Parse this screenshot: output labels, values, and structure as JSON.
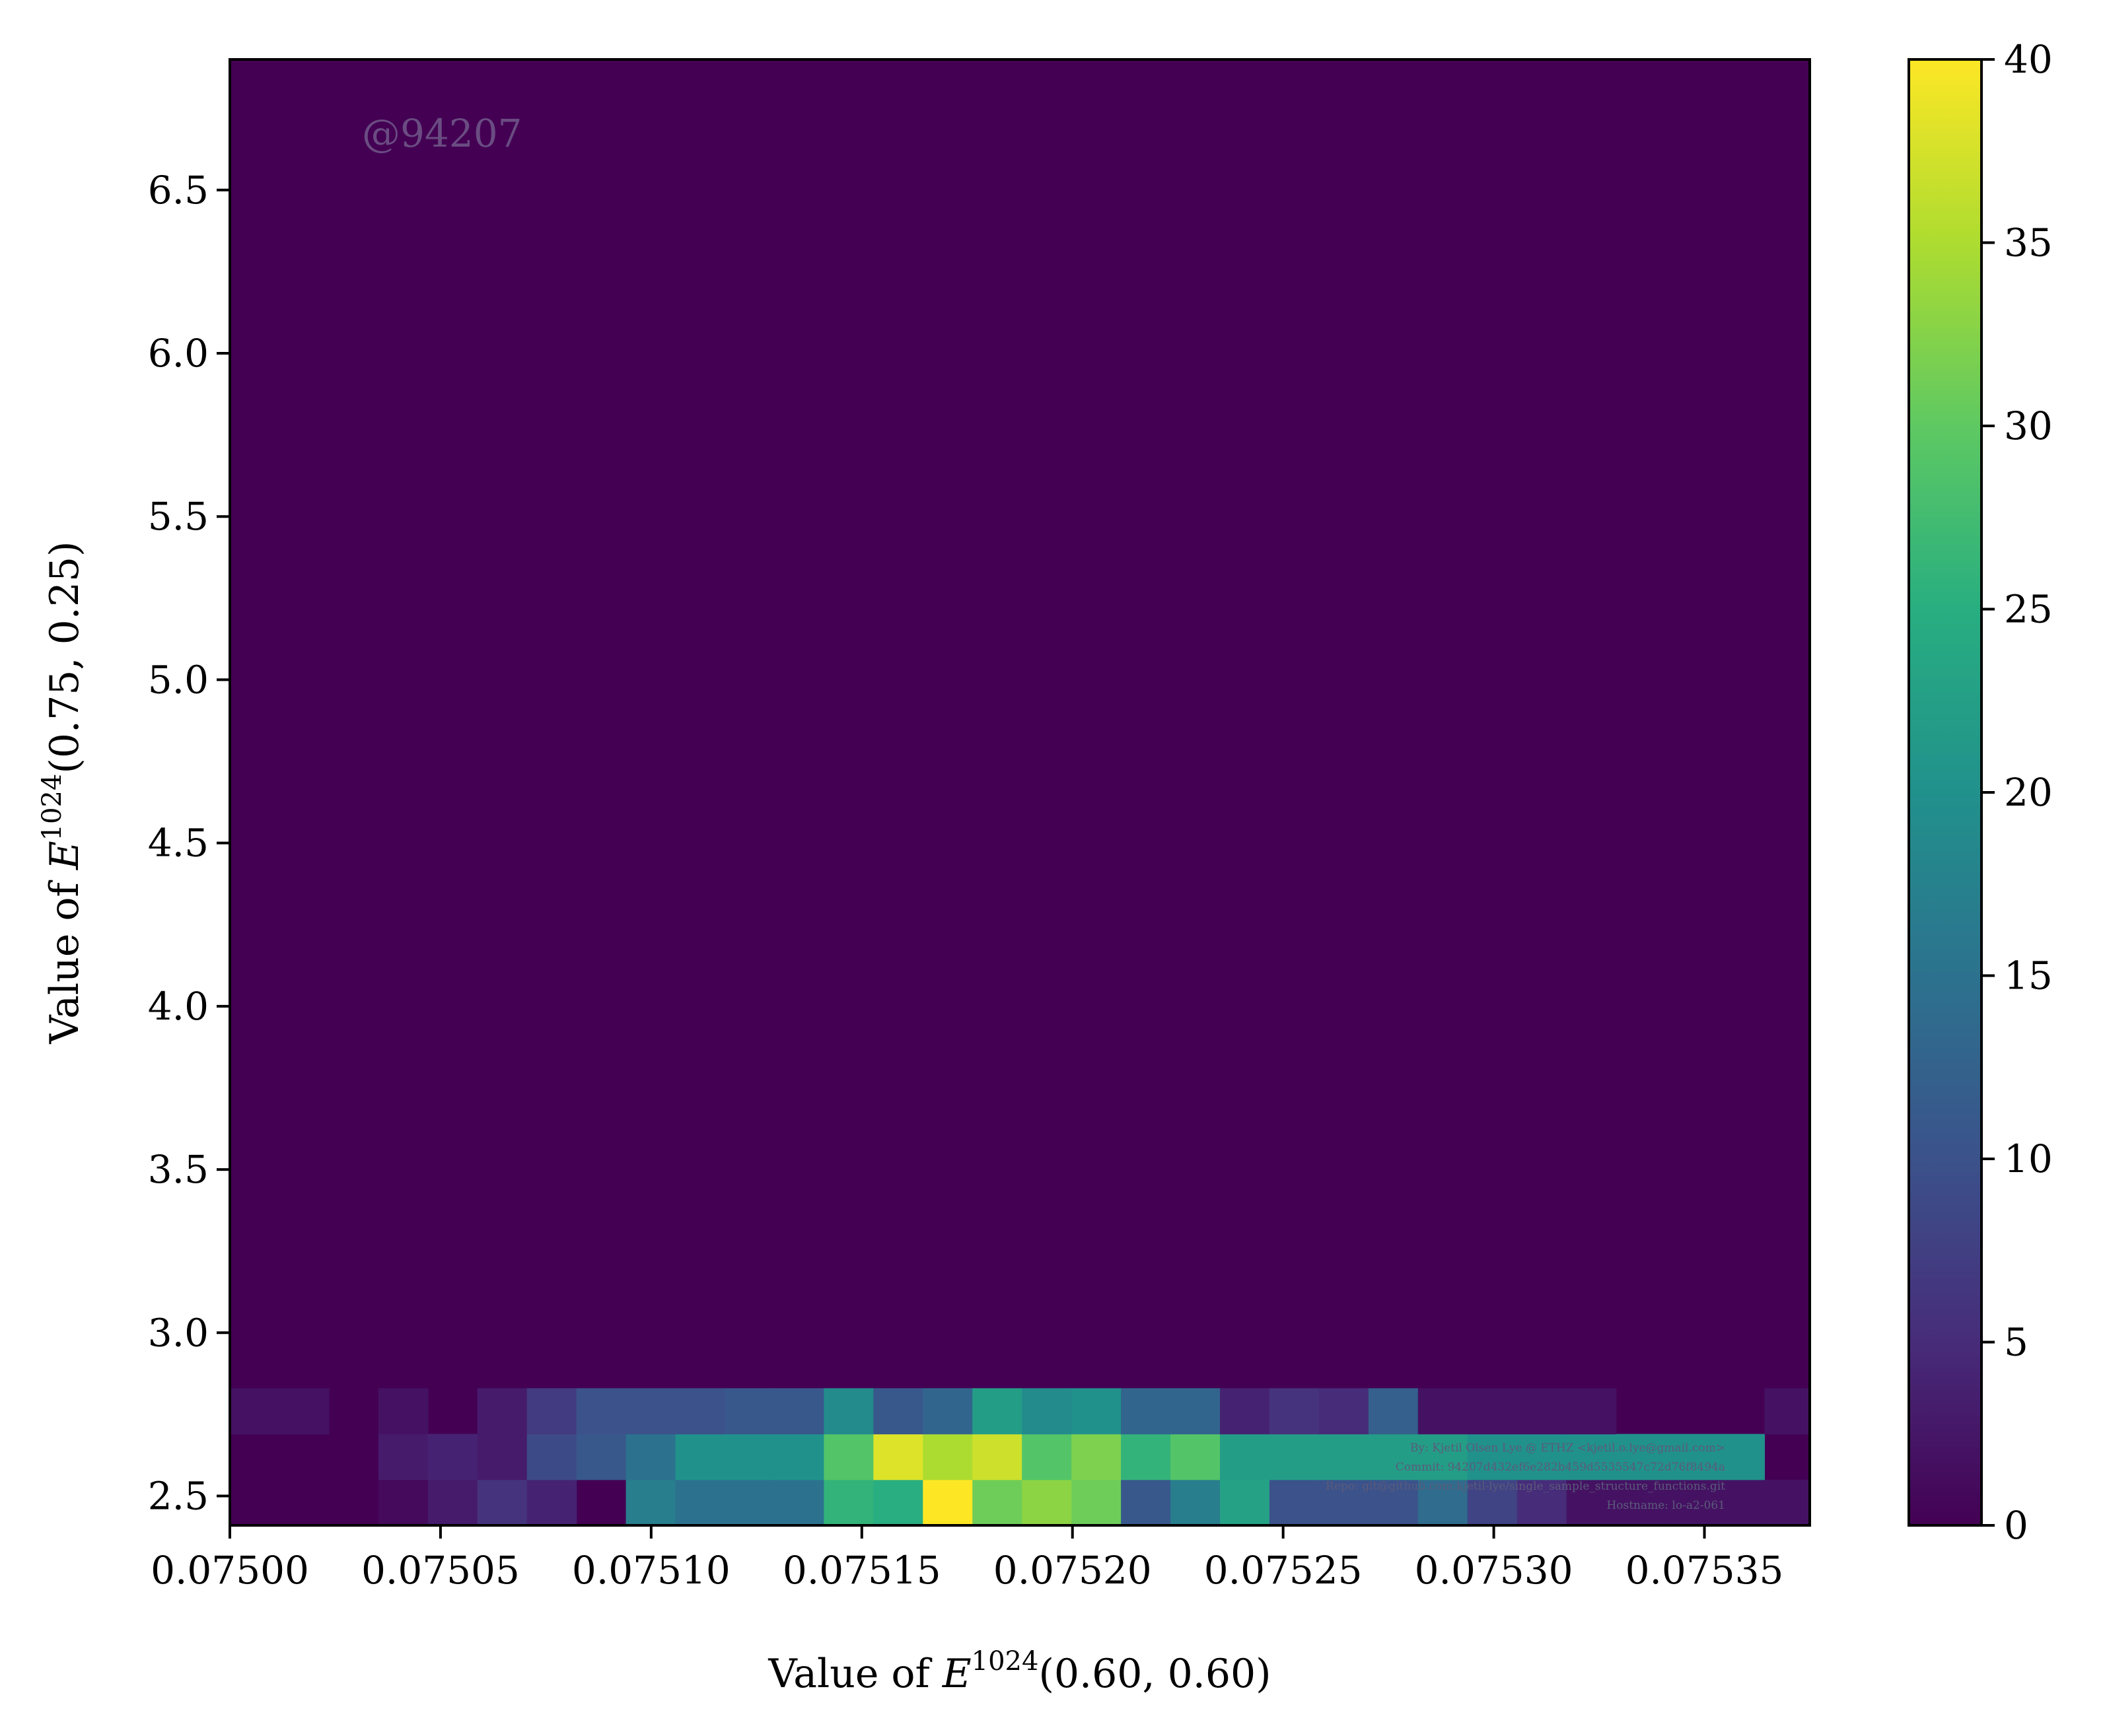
{
  "chart_data": {
    "type": "heatmap",
    "title": "",
    "xlabel": "Value of ",
    "xlabel_math": "E",
    "xlabel_sup": "1024",
    "xlabel_args": "(0.60, 0.60)",
    "ylabel": "Value of ",
    "ylabel_math": "E",
    "ylabel_sup": "1024",
    "ylabel_args": "(0.75, 0.25)",
    "xlim": [
      0.075,
      0.075375
    ],
    "ylim": [
      2.41,
      6.9
    ],
    "x_ticks": [
      0.075,
      0.07505,
      0.0751,
      0.07515,
      0.0752,
      0.07525,
      0.0753,
      0.07535
    ],
    "x_tick_labels": [
      "0.07500",
      "0.07505",
      "0.07510",
      "0.07515",
      "0.07520",
      "0.07525",
      "0.07530",
      "0.07535"
    ],
    "y_ticks": [
      2.5,
      3.0,
      3.5,
      4.0,
      4.5,
      5.0,
      5.5,
      6.0,
      6.5
    ],
    "y_tick_labels": [
      "2.5",
      "3.0",
      "3.5",
      "4.0",
      "4.5",
      "5.0",
      "5.5",
      "6.0",
      "6.5"
    ],
    "colorbar": {
      "range": [
        0,
        40
      ],
      "ticks": [
        0,
        5,
        10,
        15,
        20,
        25,
        30,
        35,
        40
      ],
      "tick_labels": [
        "0",
        "5",
        "10",
        "15",
        "20",
        "25",
        "30",
        "35",
        "40"
      ],
      "colormap": "viridis"
    },
    "grid": false,
    "bins": {
      "x_start": 0.075,
      "x_width": 1.175e-05,
      "y_edges": [
        2.41,
        2.55,
        2.69,
        2.83
      ],
      "rows": [
        [
          0,
          0,
          0,
          1,
          3,
          6,
          4,
          0,
          17,
          15,
          15,
          15,
          26,
          25,
          40,
          31,
          33,
          31,
          11,
          17,
          23,
          10,
          10,
          10,
          14,
          8,
          5,
          2,
          2,
          2,
          2,
          2,
          2,
          2,
          2,
          0,
          0,
          0
        ],
        [
          0,
          0,
          0,
          3,
          4,
          3,
          9,
          11,
          15,
          20,
          20,
          20,
          29,
          38,
          35,
          37,
          29,
          32,
          26,
          29,
          22,
          22,
          22,
          22,
          22,
          20,
          20,
          20,
          20,
          20,
          20,
          0,
          0,
          0,
          0,
          0,
          0,
          0
        ],
        [
          2,
          2,
          0,
          2,
          0,
          3,
          7,
          10,
          10,
          10,
          11,
          11,
          19,
          11,
          13,
          22,
          19,
          20,
          13,
          13,
          4,
          6,
          5,
          12,
          2,
          2,
          2,
          2,
          0,
          0,
          0,
          2,
          0,
          0,
          0,
          0,
          0,
          0
        ]
      ]
    }
  },
  "annotations": {
    "watermark": "@94207",
    "credit_lines": [
      "By: Kjetil Olsen Lye @ ETHZ <kjetil.o.lye@gmail.com>",
      "Commit: 94207d432ef6e282b459d5535547c72d76f8494a",
      "Repo: git@github.com:kjetil-lye/single_sample_structure_functions.git",
      "Hostname: lo-a2-061"
    ]
  }
}
